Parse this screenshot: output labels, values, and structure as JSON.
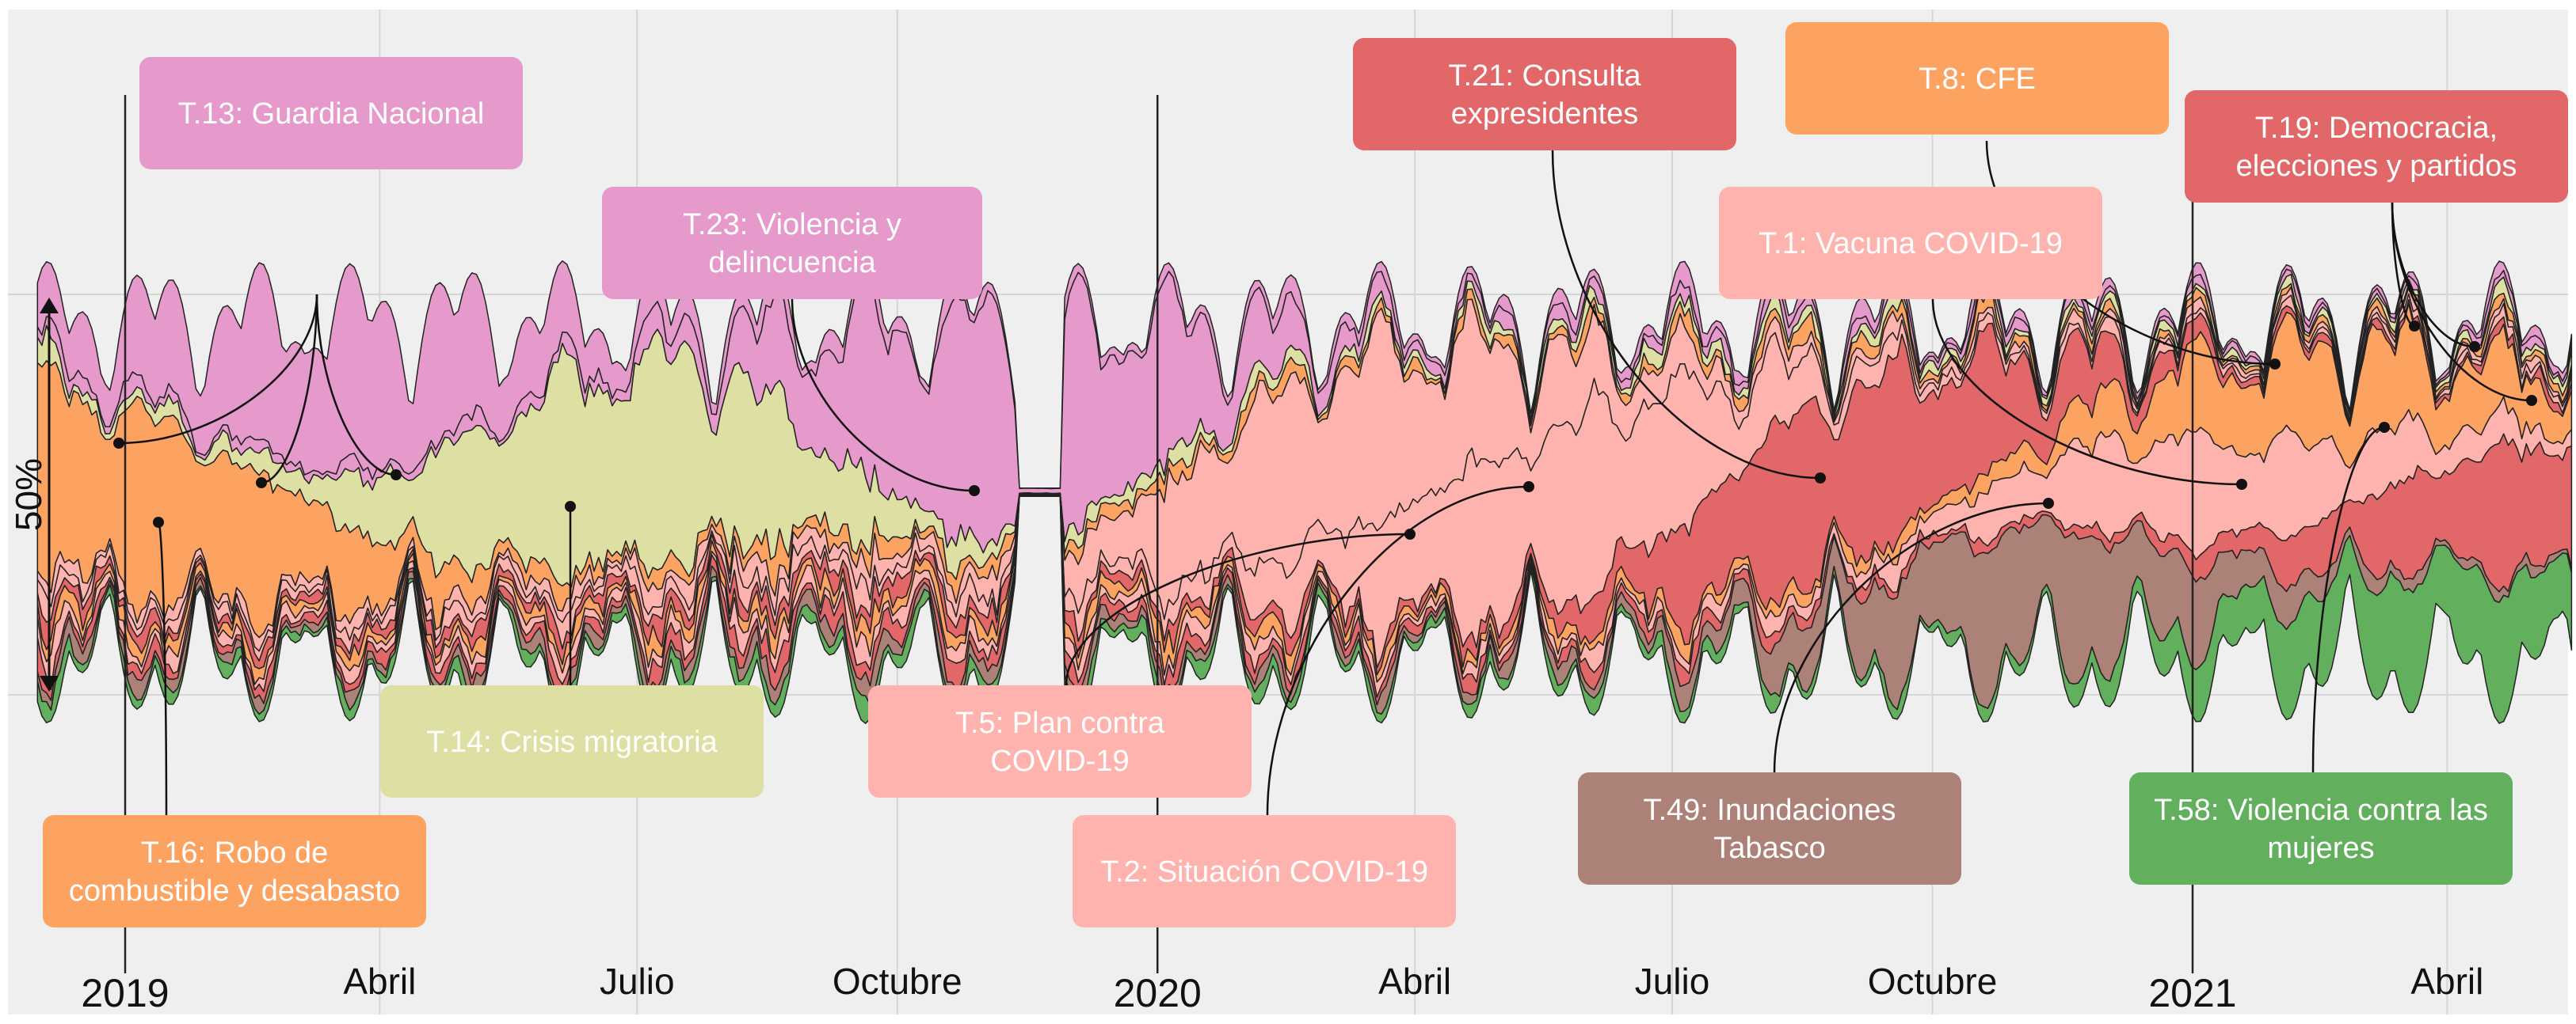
{
  "chart_data": {
    "type": "area",
    "subtype": "streamgraph",
    "title": "",
    "xlabel": "",
    "ylabel": "",
    "scale_bar_label": "50%",
    "scale_bar_value": 50,
    "x_ticks": [
      {
        "label": "2019",
        "date": "2019-01-01",
        "year": true
      },
      {
        "label": "Abril",
        "date": "2019-04-01",
        "year": false
      },
      {
        "label": "Julio",
        "date": "2019-07-01",
        "year": false
      },
      {
        "label": "Octubre",
        "date": "2019-10-01",
        "year": false
      },
      {
        "label": "2020",
        "date": "2020-01-01",
        "year": true
      },
      {
        "label": "Abril",
        "date": "2020-04-01",
        "year": false
      },
      {
        "label": "Julio",
        "date": "2020-07-01",
        "year": false
      },
      {
        "label": "Octubre",
        "date": "2020-10-01",
        "year": false
      },
      {
        "label": "2021",
        "date": "2021-01-01",
        "year": true
      },
      {
        "label": "Abril",
        "date": "2021-04-01",
        "year": false
      }
    ],
    "x_range": [
      "2018-12-01",
      "2021-05-15"
    ],
    "grid": true,
    "series": [
      {
        "name": "T.13: Guardia Nacional",
        "color": "#E59ACB",
        "peak": "2019-03"
      },
      {
        "name": "T.23: Violencia y delincuencia",
        "color": "#E59ACB",
        "peak": "2019-11"
      },
      {
        "name": "T.14: Crisis migratoria",
        "color": "#DEDFA3",
        "peak": "2019-06"
      },
      {
        "name": "T.16: Robo de combustible y desabasto",
        "color": "#FDA362",
        "peak": "2019-01"
      },
      {
        "name": "T.5: Plan contra COVID-19",
        "color": "#FEB3AE",
        "peak": "2020-03"
      },
      {
        "name": "T.2: Situación COVID-19",
        "color": "#FEB3AE",
        "peak": "2020-05"
      },
      {
        "name": "T.21: Consulta expresidentes",
        "color": "#E26768",
        "peak": "2020-09"
      },
      {
        "name": "T.8: CFE",
        "color": "#FDA362",
        "peak": "2021-02"
      },
      {
        "name": "T.1: Vacuna COVID-19",
        "color": "#FEB3AE",
        "peak": "2021-01"
      },
      {
        "name": "T.19: Democracia, elecciones y partidos",
        "color": "#E26768",
        "peak": "2021-04"
      },
      {
        "name": "T.49: Inundaciones Tabasco",
        "color": "#AC8177",
        "peak": "2020-11"
      },
      {
        "name": "T.58: Violencia contra las mujeres",
        "color": "#62B05E",
        "peak": "2021-03"
      }
    ],
    "labels": [
      {
        "text": "T.13: Guardia Nacional",
        "series": 0
      },
      {
        "text": "T.23: Violencia y|delincuencia",
        "series": 1
      },
      {
        "text": "T.14: Crisis migratoria",
        "series": 2
      },
      {
        "text": "T.16: Robo de|combustible y desabasto",
        "series": 3
      },
      {
        "text": "T.5: Plan contra|COVID-19",
        "series": 4
      },
      {
        "text": "T.2: Situación COVID-19",
        "series": 5
      },
      {
        "text": "T.21: Consulta|expresidentes",
        "series": 6
      },
      {
        "text": "T.8: CFE",
        "series": 7
      },
      {
        "text": "T.1: Vacuna COVID-19",
        "series": 8
      },
      {
        "text": "T.19: Democracia,|elecciones y partidos",
        "series": 9
      },
      {
        "text": "T.49: Inundaciones|Tabasco",
        "series": 10
      },
      {
        "text": "T.58: Violencia contra las|mujeres",
        "series": 11
      }
    ]
  }
}
